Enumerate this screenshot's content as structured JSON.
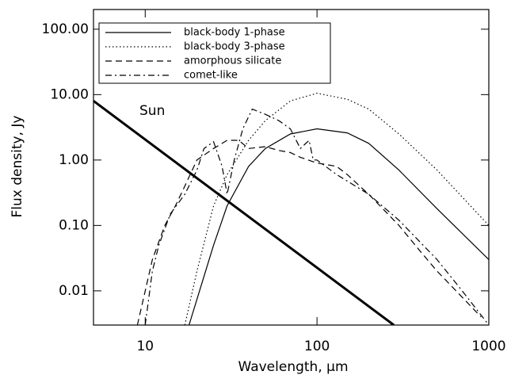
{
  "chart_data": {
    "type": "line",
    "xlabel": "Wavelength, μm",
    "ylabel": "Flux density, Jy",
    "annotation": "Sun",
    "xscale": "log",
    "yscale": "log",
    "xlim": [
      5,
      1000
    ],
    "ylim": [
      0.003,
      200
    ],
    "xticks": [
      10,
      100,
      1000
    ],
    "yticks": [
      {
        "value": 0.01,
        "label": "0.01"
      },
      {
        "value": 0.1,
        "label": "0.10"
      },
      {
        "value": 1,
        "label": "1.00"
      },
      {
        "value": 10,
        "label": "10.00"
      },
      {
        "value": 100,
        "label": "100.00"
      }
    ],
    "legend": "upper left",
    "sun": {
      "x": [
        5,
        280
      ],
      "values": [
        8,
        0.003
      ],
      "color": "#000000"
    },
    "series": [
      {
        "name": "black-body 1-phase",
        "color": "#000000",
        "dash": "solid",
        "x": [
          18,
          25,
          30,
          40,
          50,
          70,
          100,
          150,
          200,
          300,
          500,
          1000
        ],
        "values": [
          0.003,
          0.05,
          0.2,
          0.8,
          1.5,
          2.5,
          3.0,
          2.6,
          1.8,
          0.7,
          0.18,
          0.03
        ]
      },
      {
        "name": "black-body 3-phase",
        "color": "#000000",
        "dash": "dotted",
        "x": [
          17,
          20,
          25,
          30,
          40,
          50,
          70,
          100,
          150,
          200,
          300,
          500,
          1000
        ],
        "values": [
          0.003,
          0.02,
          0.2,
          0.6,
          2,
          4,
          8,
          10.5,
          8.5,
          6,
          2.5,
          0.7,
          0.1
        ]
      },
      {
        "name": "amorphous silicate",
        "color": "#000000",
        "dash": "dashed",
        "x": [
          9,
          10,
          11,
          13,
          15,
          17,
          20,
          25,
          30,
          35,
          40,
          50,
          60,
          70,
          80,
          100,
          130,
          150,
          200,
          300,
          400,
          500,
          700,
          900
        ],
        "values": [
          0.003,
          0.01,
          0.03,
          0.1,
          0.2,
          0.4,
          1.0,
          1.5,
          2.0,
          2.0,
          1.5,
          1.6,
          1.4,
          1.3,
          1.1,
          0.9,
          0.8,
          0.6,
          0.3,
          0.1,
          0.04,
          0.02,
          0.008,
          0.004
        ]
      },
      {
        "name": "comet-like",
        "color": "#000000",
        "dash": "dashdot",
        "x": [
          10,
          11,
          12,
          14,
          17,
          20,
          22,
          25,
          28,
          30,
          33,
          37,
          42,
          50,
          60,
          70,
          80,
          90,
          95,
          100,
          130,
          200,
          300,
          500,
          700,
          1000
        ],
        "values": [
          0.003,
          0.02,
          0.05,
          0.15,
          0.3,
          0.7,
          1.5,
          1.9,
          0.8,
          0.3,
          1.0,
          3.0,
          6.0,
          5.0,
          4.0,
          3.0,
          1.5,
          2.0,
          1.0,
          1.0,
          0.6,
          0.3,
          0.12,
          0.03,
          0.01,
          0.003
        ]
      }
    ]
  }
}
